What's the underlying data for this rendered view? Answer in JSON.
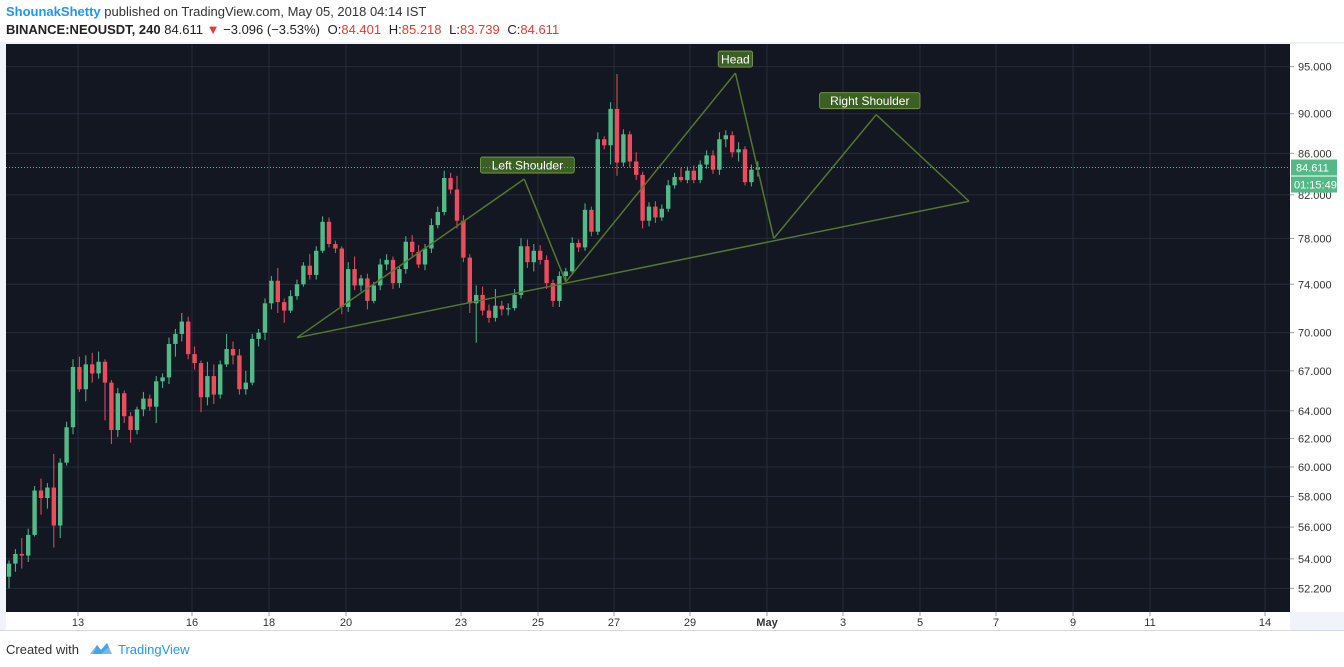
{
  "header": {
    "author": "ShounakShetty",
    "published": "published on TradingView.com, May 05, 2018 04:14 IST",
    "symbol": "BINANCE:NEOUSDT, 240",
    "last": "84.611",
    "change": "−3.096 (−3.53%)",
    "o_label": "O:",
    "o_value": "84.401",
    "h_label": "H:",
    "h_value": "85.218",
    "l_label": "L:",
    "l_value": "83.739",
    "c_label": "C:",
    "c_value": "84.611"
  },
  "footer": {
    "created_with": "Created with",
    "brand": "TradingView"
  },
  "colors": {
    "up": "#53b987",
    "down": "#eb4d5c",
    "pattern": "#55762f",
    "bg": "#131722",
    "label_bg": "#3c5f24",
    "price_tag": "#53b987"
  },
  "chart_data": {
    "type": "candlestick",
    "symbol": "BINANCE:NEOUSDT",
    "interval": "240",
    "y_scale": "log",
    "ylim": [
      50.8,
      97.5
    ],
    "y_ticks": [
      52.2,
      54,
      56,
      58,
      60,
      62,
      64,
      67,
      70,
      74,
      78,
      82,
      86,
      90,
      95
    ],
    "y_tick_labels": [
      "52.200",
      "54.000",
      "56.000",
      "58.000",
      "60.000",
      "62.000",
      "64.000",
      "67.000",
      "70.000",
      "74.000",
      "78.000",
      "82.000",
      "86.000",
      "90.000",
      "95.000"
    ],
    "x_tick_labels": [
      "13",
      "16",
      "18",
      "20",
      "23",
      "25",
      "27",
      "29",
      "May",
      "3",
      "5",
      "7",
      "9",
      "11",
      "14"
    ],
    "last_price": 84.611,
    "last_price_label": "84.611",
    "countdown": "01:15:49",
    "annotations": [
      "Left Shoulder",
      "Head",
      "Right Shoulder"
    ],
    "candles": [
      [
        52.9,
        53.9,
        52.2,
        53.7
      ],
      [
        53.7,
        54.6,
        53.2,
        54.3
      ],
      [
        54.3,
        55.3,
        53.4,
        54.2
      ],
      [
        54.2,
        55.9,
        53.8,
        55.5
      ],
      [
        55.5,
        58.7,
        55.4,
        58.4
      ],
      [
        58.4,
        59.2,
        56.8,
        57.9
      ],
      [
        57.9,
        58.9,
        57.2,
        58.6
      ],
      [
        58.6,
        60.9,
        54.7,
        56.1
      ],
      [
        56.1,
        60.6,
        55.3,
        60.3
      ],
      [
        60.3,
        63.2,
        60.1,
        62.8
      ],
      [
        62.8,
        67.9,
        62.3,
        67.3
      ],
      [
        67.3,
        68.1,
        65.4,
        65.6
      ],
      [
        65.6,
        68.2,
        64.7,
        67.5
      ],
      [
        67.5,
        68.4,
        66.1,
        66.8
      ],
      [
        66.8,
        68.5,
        66.4,
        67.7
      ],
      [
        67.7,
        67.9,
        63.3,
        66.1
      ],
      [
        66.1,
        66.3,
        61.6,
        62.6
      ],
      [
        62.6,
        65.7,
        62.1,
        65.3
      ],
      [
        65.3,
        65.5,
        63.1,
        63.6
      ],
      [
        63.6,
        63.9,
        61.7,
        62.6
      ],
      [
        62.6,
        64.3,
        62.3,
        64.1
      ],
      [
        64.1,
        65.4,
        63.6,
        64.9
      ],
      [
        64.9,
        65.2,
        64.0,
        64.3
      ],
      [
        64.3,
        66.6,
        63.1,
        66.2
      ],
      [
        66.2,
        66.8,
        65.7,
        66.5
      ],
      [
        66.5,
        69.6,
        66.0,
        69.1
      ],
      [
        69.1,
        70.3,
        68.1,
        69.9
      ],
      [
        69.9,
        71.6,
        69.3,
        70.9
      ],
      [
        70.9,
        71.3,
        67.9,
        68.3
      ],
      [
        68.3,
        68.9,
        67.1,
        67.6
      ],
      [
        67.6,
        67.8,
        63.9,
        65.0
      ],
      [
        65.0,
        67.7,
        64.4,
        66.6
      ],
      [
        66.6,
        67.5,
        64.5,
        65.2
      ],
      [
        65.2,
        67.8,
        64.9,
        67.5
      ],
      [
        67.5,
        69.9,
        67.3,
        68.7
      ],
      [
        68.7,
        69.3,
        67.5,
        68.2
      ],
      [
        68.2,
        68.7,
        65.2,
        65.6
      ],
      [
        65.6,
        67.0,
        65.2,
        66.1
      ],
      [
        66.1,
        69.9,
        65.9,
        69.5
      ],
      [
        69.5,
        70.3,
        68.9,
        70.0
      ],
      [
        70.0,
        72.8,
        69.4,
        72.4
      ],
      [
        72.4,
        74.7,
        71.9,
        74.3
      ],
      [
        74.3,
        75.4,
        71.6,
        72.5
      ],
      [
        72.5,
        72.8,
        70.8,
        71.8
      ],
      [
        71.8,
        73.5,
        71.6,
        73.0
      ],
      [
        73.0,
        74.4,
        72.7,
        74.0
      ],
      [
        74.0,
        75.9,
        73.8,
        75.6
      ],
      [
        75.6,
        76.6,
        74.4,
        74.8
      ],
      [
        74.8,
        77.3,
        74.4,
        76.9
      ],
      [
        76.9,
        80.0,
        76.7,
        79.5
      ],
      [
        79.5,
        79.9,
        77.2,
        77.5
      ],
      [
        77.5,
        77.8,
        76.7,
        77.1
      ],
      [
        77.1,
        77.3,
        71.5,
        72.1
      ],
      [
        72.1,
        75.9,
        71.7,
        75.3
      ],
      [
        75.3,
        76.4,
        73.5,
        73.9
      ],
      [
        73.9,
        74.8,
        73.4,
        74.5
      ],
      [
        74.5,
        74.9,
        71.9,
        72.6
      ],
      [
        72.6,
        74.2,
        72.4,
        73.9
      ],
      [
        73.9,
        76.2,
        73.5,
        75.7
      ],
      [
        75.7,
        76.6,
        75.2,
        76.1
      ],
      [
        76.1,
        76.4,
        73.6,
        74.1
      ],
      [
        74.1,
        75.6,
        73.7,
        75.3
      ],
      [
        75.3,
        78.2,
        74.9,
        77.7
      ],
      [
        77.7,
        78.3,
        76.4,
        76.8
      ],
      [
        76.8,
        77.4,
        75.4,
        75.7
      ],
      [
        75.7,
        77.5,
        75.2,
        77.1
      ],
      [
        77.1,
        79.8,
        76.7,
        79.2
      ],
      [
        79.2,
        80.9,
        78.9,
        80.4
      ],
      [
        80.4,
        84.3,
        80.1,
        83.6
      ],
      [
        83.6,
        84.1,
        82.1,
        82.5
      ],
      [
        82.5,
        83.8,
        78.9,
        79.6
      ],
      [
        79.6,
        80.1,
        75.9,
        76.3
      ],
      [
        76.3,
        76.6,
        71.6,
        72.4
      ],
      [
        72.4,
        73.9,
        69.2,
        73.1
      ],
      [
        73.1,
        73.8,
        71.4,
        71.8
      ],
      [
        71.8,
        72.3,
        70.8,
        71.2
      ],
      [
        71.2,
        73.6,
        70.9,
        72.2
      ],
      [
        72.2,
        72.6,
        71.4,
        71.9
      ],
      [
        71.9,
        72.4,
        71.4,
        72.0
      ],
      [
        72.0,
        73.6,
        71.8,
        73.1
      ],
      [
        73.1,
        78.0,
        72.8,
        77.3
      ],
      [
        77.3,
        77.9,
        75.4,
        75.9
      ],
      [
        75.9,
        77.5,
        75.1,
        76.9
      ],
      [
        76.9,
        77.4,
        75.7,
        76.1
      ],
      [
        76.1,
        76.5,
        73.6,
        74.1
      ],
      [
        74.1,
        74.4,
        72.1,
        72.6
      ],
      [
        72.6,
        75.1,
        72.1,
        74.7
      ],
      [
        74.7,
        75.4,
        74.2,
        75.1
      ],
      [
        75.1,
        78.1,
        74.8,
        77.6
      ],
      [
        77.6,
        77.9,
        76.8,
        77.2
      ],
      [
        77.2,
        81.2,
        76.9,
        80.6
      ],
      [
        80.6,
        80.9,
        78.2,
        78.6
      ],
      [
        78.6,
        88.1,
        78.3,
        87.4
      ],
      [
        87.4,
        87.7,
        86.4,
        86.8
      ],
      [
        86.8,
        91.2,
        84.9,
        90.5
      ],
      [
        90.5,
        94.2,
        83.8,
        85.1
      ],
      [
        85.1,
        88.4,
        84.7,
        87.9
      ],
      [
        87.9,
        88.2,
        84.6,
        85.2
      ],
      [
        85.2,
        86.1,
        83.4,
        83.9
      ],
      [
        83.9,
        84.2,
        78.9,
        79.6
      ],
      [
        79.6,
        81.3,
        79.1,
        80.9
      ],
      [
        80.9,
        81.4,
        79.4,
        79.9
      ],
      [
        79.9,
        81.1,
        79.6,
        80.7
      ],
      [
        80.7,
        83.4,
        80.4,
        82.9
      ],
      [
        82.9,
        84.1,
        82.6,
        83.7
      ],
      [
        83.7,
        84.6,
        83.2,
        83.4
      ],
      [
        83.4,
        84.7,
        83.1,
        84.3
      ],
      [
        84.3,
        84.8,
        83.1,
        83.4
      ],
      [
        83.4,
        85.3,
        83.1,
        84.9
      ],
      [
        84.9,
        86.3,
        84.5,
        85.8
      ],
      [
        85.8,
        86.3,
        84.0,
        84.4
      ],
      [
        84.4,
        88.1,
        83.9,
        87.4
      ],
      [
        87.4,
        88.3,
        86.6,
        87.8
      ],
      [
        87.8,
        88.2,
        85.6,
        86.1
      ],
      [
        86.1,
        87.1,
        85.2,
        86.4
      ],
      [
        86.4,
        86.7,
        82.9,
        83.2
      ],
      [
        83.2,
        84.9,
        82.8,
        84.401
      ],
      [
        84.401,
        85.218,
        83.739,
        84.611
      ]
    ]
  }
}
